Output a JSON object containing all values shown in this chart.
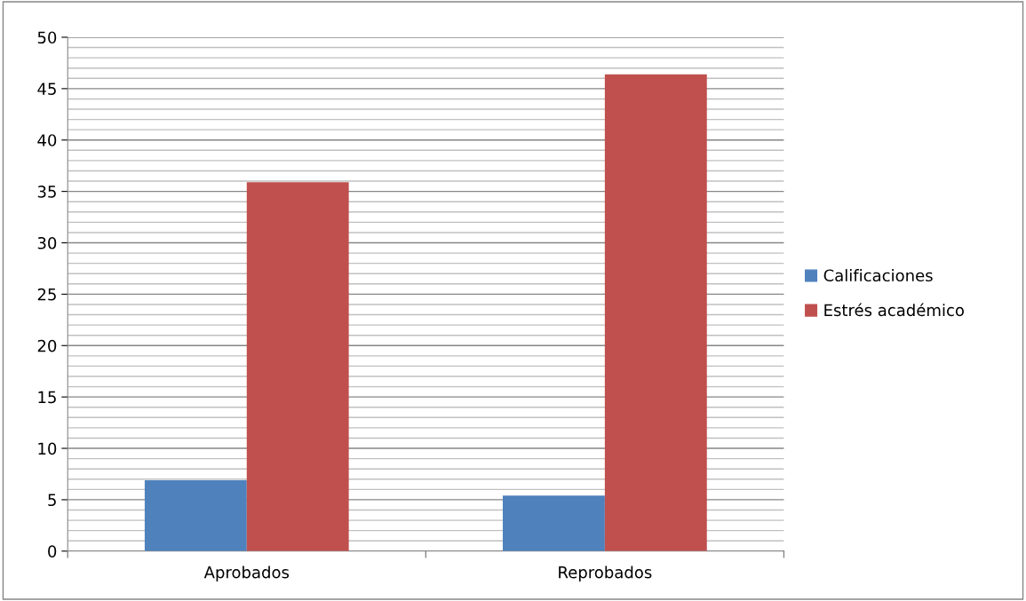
{
  "chart_data": {
    "type": "bar",
    "categories": [
      "Aprobados",
      "Reprobados"
    ],
    "series": [
      {
        "name": "Calificaciones",
        "color": "#4f81bd",
        "values": [
          6.9,
          5.4
        ]
      },
      {
        "name": "Estrés académico",
        "color": "#c0504d",
        "values": [
          35.9,
          46.4
        ]
      }
    ],
    "ylim": [
      0,
      50
    ],
    "yticks": [
      0,
      {
        "value": 1,
        "label": null
      },
      {
        "value": 2,
        "label": null
      },
      {
        "value": 3,
        "label": null
      },
      {
        "value": 4,
        "label": null
      },
      5,
      {
        "value": 6,
        "label": null
      },
      {
        "value": 7,
        "label": null
      },
      {
        "value": 8,
        "label": null
      },
      {
        "value": 9,
        "label": null
      },
      10,
      {
        "value": 11,
        "label": null
      },
      {
        "value": 12,
        "label": null
      },
      {
        "value": 13,
        "label": null
      },
      {
        "value": 14,
        "label": null
      },
      15,
      {
        "value": 16,
        "label": null
      },
      {
        "value": 17,
        "label": null
      },
      {
        "value": 18,
        "label": null
      },
      {
        "value": 19,
        "label": null
      },
      20,
      {
        "value": 21,
        "label": null
      },
      {
        "value": 22,
        "label": null
      },
      {
        "value": 23,
        "label": null
      },
      {
        "value": 24,
        "label": null
      },
      25,
      {
        "value": 26,
        "label": null
      },
      {
        "value": 27,
        "label": null
      },
      {
        "value": 28,
        "label": null
      },
      {
        "value": 29,
        "label": null
      },
      30,
      {
        "value": 31,
        "label": null
      },
      {
        "value": 32,
        "label": null
      },
      {
        "value": 33,
        "label": null
      },
      {
        "value": 34,
        "label": null
      },
      35,
      {
        "value": 36,
        "label": null
      },
      {
        "value": 37,
        "label": null
      },
      {
        "value": 38,
        "label": null
      },
      {
        "value": 39,
        "label": null
      },
      40,
      {
        "value": 41,
        "label": null
      },
      {
        "value": 42,
        "label": null
      },
      {
        "value": 43,
        "label": null
      },
      {
        "value": 44,
        "label": null
      },
      45,
      {
        "value": 46,
        "label": null
      },
      {
        "value": 47,
        "label": null
      },
      {
        "value": 48,
        "label": null
      },
      {
        "value": 49,
        "label": null
      },
      50
    ],
    "grid": "y",
    "legend": "right"
  }
}
